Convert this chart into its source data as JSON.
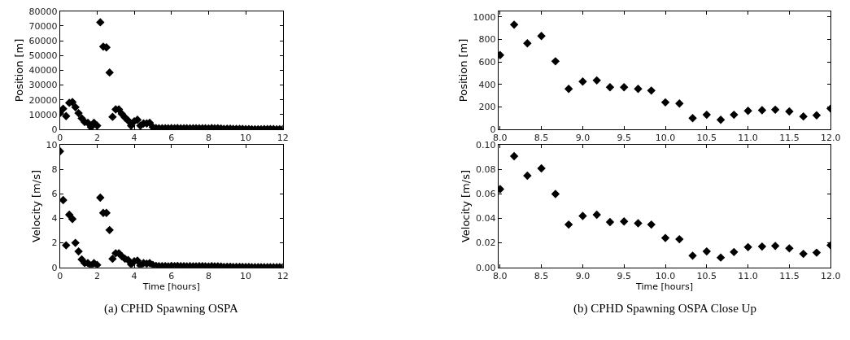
{
  "chart_data": [
    {
      "type": "scatter",
      "ylabel": "Position [m]",
      "marker": "diamond",
      "xlim": [
        0,
        12
      ],
      "xticks": [
        0,
        2,
        4,
        6,
        8,
        10,
        12
      ],
      "ylim": [
        0,
        80000
      ],
      "yticks": [
        0,
        10000,
        20000,
        30000,
        40000,
        50000,
        60000,
        70000,
        80000
      ],
      "x": [
        0,
        0.17,
        0.33,
        0.5,
        0.67,
        0.83,
        1,
        1.17,
        1.33,
        1.5,
        1.67,
        1.83,
        2,
        2.17,
        2.33,
        2.5,
        2.67,
        2.83,
        3,
        3.17,
        3.33,
        3.5,
        3.67,
        3.83,
        4,
        4.17,
        4.33,
        4.5,
        4.67,
        4.83,
        5,
        5.17,
        5.33,
        5.5,
        5.67,
        5.83,
        6,
        6.17,
        6.33,
        6.5,
        6.67,
        6.83,
        7,
        7.17,
        7.33,
        7.5,
        7.67,
        7.83,
        8,
        8.17,
        8.33,
        8.5,
        8.67,
        8.83,
        9,
        9.17,
        9.33,
        9.5,
        9.67,
        9.83,
        10,
        10.17,
        10.33,
        10.5,
        10.67,
        10.83,
        11,
        11.17,
        11.33,
        11.5,
        11.67,
        11.83,
        12
      ],
      "series": [
        {
          "color": "#000000",
          "values": [
            11000,
            14000,
            9000,
            18000,
            18500,
            15000,
            11000,
            7500,
            5000,
            4500,
            1500,
            4500,
            2500,
            72500,
            56000,
            55500,
            38500,
            8500,
            13500,
            13500,
            10500,
            8000,
            6000,
            2500,
            5500,
            6500,
            2500,
            4000,
            4000,
            4500,
            1500,
            900,
            800,
            800,
            700,
            700,
            900,
            800,
            900,
            800,
            800,
            700,
            800,
            700,
            700,
            800,
            800,
            700,
            660,
            930,
            765,
            830,
            605,
            360,
            425,
            435,
            375,
            375,
            360,
            345,
            240,
            230,
            100,
            130,
            85,
            130,
            165,
            170,
            175,
            160,
            115,
            125,
            185
          ]
        }
      ]
    },
    {
      "type": "scatter",
      "ylabel": "Velocity [m/s]",
      "xlabel": "Time [hours]",
      "marker": "diamond",
      "xlim": [
        0,
        12
      ],
      "xticks": [
        0,
        2,
        4,
        6,
        8,
        10,
        12
      ],
      "ylim": [
        0,
        10
      ],
      "yticks": [
        0,
        2,
        4,
        6,
        8,
        10
      ],
      "annotations": [
        "(a) CPHD Spawning OSPA"
      ],
      "x": [
        0,
        0.17,
        0.33,
        0.5,
        0.67,
        0.83,
        1,
        1.17,
        1.33,
        1.5,
        1.67,
        1.83,
        2,
        2.17,
        2.33,
        2.5,
        2.67,
        2.83,
        3,
        3.17,
        3.33,
        3.5,
        3.67,
        3.83,
        4,
        4.17,
        4.33,
        4.5,
        4.67,
        4.83,
        5,
        5.17,
        5.33,
        5.5,
        5.67,
        5.83,
        6,
        6.17,
        6.33,
        6.5,
        6.67,
        6.83,
        7,
        7.17,
        7.33,
        7.5,
        7.67,
        7.83,
        8,
        8.17,
        8.33,
        8.5,
        8.67,
        8.83,
        9,
        9.17,
        9.33,
        9.5,
        9.67,
        9.83,
        10,
        10.17,
        10.33,
        10.5,
        10.67,
        10.83,
        11,
        11.17,
        11.33,
        11.5,
        11.67,
        11.83,
        12
      ],
      "series": [
        {
          "color": "#000000",
          "values": [
            9.5,
            5.5,
            1.8,
            4.3,
            3.95,
            2.0,
            1.3,
            0.65,
            0.35,
            0.35,
            0.15,
            0.35,
            0.2,
            5.7,
            4.45,
            4.45,
            3.05,
            0.7,
            1.15,
            1.15,
            0.9,
            0.7,
            0.6,
            0.25,
            0.5,
            0.55,
            0.15,
            0.35,
            0.3,
            0.35,
            0.2,
            0.12,
            0.1,
            0.1,
            0.09,
            0.08,
            0.12,
            0.1,
            0.11,
            0.1,
            0.1,
            0.08,
            0.1,
            0.08,
            0.08,
            0.1,
            0.09,
            0.08,
            0.064,
            0.091,
            0.075,
            0.081,
            0.06,
            0.035,
            0.042,
            0.043,
            0.037,
            0.0375,
            0.036,
            0.035,
            0.024,
            0.023,
            0.0095,
            0.013,
            0.008,
            0.0125,
            0.0165,
            0.017,
            0.0175,
            0.0155,
            0.011,
            0.012,
            0.018
          ]
        }
      ]
    },
    {
      "type": "scatter",
      "ylabel": "Position [m]",
      "marker": "diamond",
      "xlim": [
        7.98,
        12
      ],
      "xticks": [
        {
          "value": 8,
          "label": "8.0"
        },
        {
          "value": 8.5,
          "label": "8.5"
        },
        {
          "value": 9,
          "label": "9.0"
        },
        {
          "value": 9.5,
          "label": "9.5"
        },
        {
          "value": 10,
          "label": "10.0"
        },
        {
          "value": 10.5,
          "label": "10.5"
        },
        {
          "value": 11,
          "label": "11.0"
        },
        {
          "value": 11.5,
          "label": "11.5"
        },
        {
          "value": 12,
          "label": "12.0"
        }
      ],
      "ylim": [
        0,
        1050
      ],
      "yticks": [
        0,
        200,
        400,
        600,
        800,
        1000
      ],
      "x": [
        8,
        8.17,
        8.33,
        8.5,
        8.67,
        8.83,
        9,
        9.17,
        9.33,
        9.5,
        9.67,
        9.83,
        10,
        10.17,
        10.33,
        10.5,
        10.67,
        10.83,
        11,
        11.17,
        11.33,
        11.5,
        11.67,
        11.83,
        12
      ],
      "series": [
        {
          "color": "#000000",
          "values": [
            660,
            930,
            765,
            830,
            605,
            360,
            425,
            435,
            375,
            375,
            360,
            345,
            240,
            230,
            100,
            130,
            85,
            130,
            165,
            170,
            175,
            160,
            115,
            125,
            185
          ]
        }
      ]
    },
    {
      "type": "scatter",
      "ylabel": "Velocity [m/s]",
      "xlabel": "Time [hours]",
      "marker": "diamond",
      "xlim": [
        7.98,
        12
      ],
      "xticks": [
        {
          "value": 8,
          "label": "8.0"
        },
        {
          "value": 8.5,
          "label": "8.5"
        },
        {
          "value": 9,
          "label": "9.0"
        },
        {
          "value": 9.5,
          "label": "9.5"
        },
        {
          "value": 10,
          "label": "10.0"
        },
        {
          "value": 10.5,
          "label": "10.5"
        },
        {
          "value": 11,
          "label": "11.0"
        },
        {
          "value": 11.5,
          "label": "11.5"
        },
        {
          "value": 12,
          "label": "12.0"
        }
      ],
      "ylim": [
        0,
        0.1
      ],
      "yticks": [
        {
          "value": 0,
          "label": "0.00"
        },
        {
          "value": 0.02,
          "label": "0.02"
        },
        {
          "value": 0.04,
          "label": "0.04"
        },
        {
          "value": 0.06,
          "label": "0.06"
        },
        {
          "value": 0.08,
          "label": "0.08"
        },
        {
          "value": 0.1,
          "label": "0.10"
        }
      ],
      "annotations": [
        "(b) CPHD Spawning OSPA Close Up"
      ],
      "x": [
        8,
        8.17,
        8.33,
        8.5,
        8.67,
        8.83,
        9,
        9.17,
        9.33,
        9.5,
        9.67,
        9.83,
        10,
        10.17,
        10.33,
        10.5,
        10.67,
        10.83,
        11,
        11.17,
        11.33,
        11.5,
        11.67,
        11.83,
        12
      ],
      "series": [
        {
          "color": "#000000",
          "values": [
            0.064,
            0.091,
            0.075,
            0.081,
            0.06,
            0.035,
            0.042,
            0.043,
            0.037,
            0.0375,
            0.036,
            0.035,
            0.024,
            0.023,
            0.0095,
            0.013,
            0.008,
            0.0125,
            0.0165,
            0.017,
            0.0175,
            0.0155,
            0.011,
            0.012,
            0.018
          ]
        }
      ]
    }
  ]
}
